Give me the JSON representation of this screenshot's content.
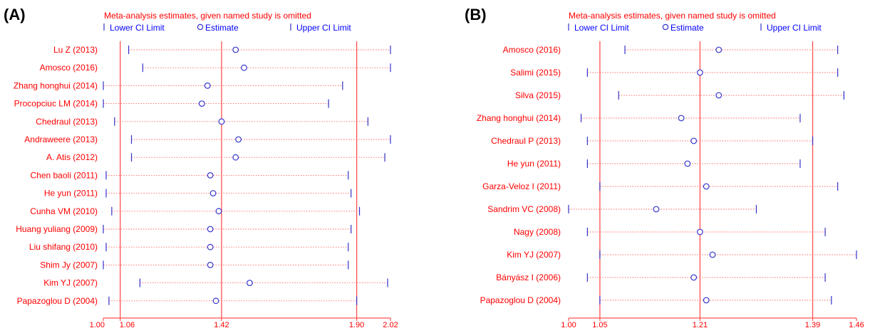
{
  "colors": {
    "text": "#ff0000",
    "refline": "#ff5050",
    "marker": "#3333cc",
    "dotted": "#ff6666",
    "panel_label": "#000000"
  },
  "chart_data": [
    {
      "type": "scatter",
      "panel_label": "(A)",
      "header": "Meta-analysis estimates, given named study is omitted",
      "legend": {
        "lower": "Lower CI Limit",
        "estimate": "Estimate",
        "upper": "Upper CI Limit"
      },
      "xlim": [
        1.0,
        2.02
      ],
      "ticks": [
        1.0,
        1.06,
        1.42,
        1.9,
        2.02
      ],
      "tick_labels": [
        "1.00",
        "1.06",
        "1.42",
        "1.90",
        "2.02"
      ],
      "reference_lines": [
        1.06,
        1.42,
        1.9
      ],
      "studies": [
        {
          "name": "Lu Z (2013)",
          "lower": 1.09,
          "estimate": 1.47,
          "upper": 2.02
        },
        {
          "name": "Amosco (2016)",
          "lower": 1.14,
          "estimate": 1.5,
          "upper": 2.02
        },
        {
          "name": "Zhang honghui (2014)",
          "lower": 1.0,
          "estimate": 1.37,
          "upper": 1.85
        },
        {
          "name": "Procopciuc LM (2014)",
          "lower": 1.0,
          "estimate": 1.35,
          "upper": 1.8
        },
        {
          "name": "Chedraul (2013)",
          "lower": 1.04,
          "estimate": 1.42,
          "upper": 1.94
        },
        {
          "name": "Andraweere (2013)",
          "lower": 1.1,
          "estimate": 1.48,
          "upper": 2.02
        },
        {
          "name": "A. Atis (2012)",
          "lower": 1.1,
          "estimate": 1.47,
          "upper": 2.0
        },
        {
          "name": "Chen baoli (2011)",
          "lower": 1.01,
          "estimate": 1.38,
          "upper": 1.87
        },
        {
          "name": "He yun (2011)",
          "lower": 1.01,
          "estimate": 1.39,
          "upper": 1.88
        },
        {
          "name": "Cunha VM (2010)",
          "lower": 1.03,
          "estimate": 1.41,
          "upper": 1.91
        },
        {
          "name": "Huang yuliang (2009)",
          "lower": 1.0,
          "estimate": 1.38,
          "upper": 1.88
        },
        {
          "name": "Liu shifang (2010)",
          "lower": 1.01,
          "estimate": 1.38,
          "upper": 1.87
        },
        {
          "name": "Shim Jy (2007)",
          "lower": 1.0,
          "estimate": 1.38,
          "upper": 1.87
        },
        {
          "name": "Kim YJ (2007)",
          "lower": 1.13,
          "estimate": 1.52,
          "upper": 2.01
        },
        {
          "name": "Papazoglou D (2004)",
          "lower": 1.02,
          "estimate": 1.4,
          "upper": 1.9
        }
      ]
    },
    {
      "type": "scatter",
      "panel_label": "(B)",
      "header": "Meta-analysis estimates, given named study is omitted",
      "legend": {
        "lower": "Lower CI Limit",
        "estimate": "Estimate",
        "upper": "Upper CI Limit"
      },
      "xlim": [
        1.0,
        1.46
      ],
      "ticks": [
        1.0,
        1.05,
        1.21,
        1.39,
        1.46
      ],
      "tick_labels": [
        "1.00",
        "1.05",
        "1.21",
        "1.39",
        "1.46"
      ],
      "reference_lines": [
        1.05,
        1.21,
        1.39
      ],
      "studies": [
        {
          "name": "Amosco (2016)",
          "lower": 1.09,
          "estimate": 1.24,
          "upper": 1.43
        },
        {
          "name": "Salimi  (2015)",
          "lower": 1.03,
          "estimate": 1.21,
          "upper": 1.43
        },
        {
          "name": "Silva  (2015)",
          "lower": 1.08,
          "estimate": 1.24,
          "upper": 1.44
        },
        {
          "name": "Zhang honghui (2014)",
          "lower": 1.02,
          "estimate": 1.18,
          "upper": 1.37
        },
        {
          "name": "Chedraul P (2013)",
          "lower": 1.03,
          "estimate": 1.2,
          "upper": 1.39
        },
        {
          "name": "He yun (2011)",
          "lower": 1.03,
          "estimate": 1.19,
          "upper": 1.37
        },
        {
          "name": "Garza-Veloz I (2011)",
          "lower": 1.05,
          "estimate": 1.22,
          "upper": 1.43
        },
        {
          "name": "Sandrim VC (2008)",
          "lower": 1.0,
          "estimate": 1.14,
          "upper": 1.3
        },
        {
          "name": "Nagy (2008)",
          "lower": 1.03,
          "estimate": 1.21,
          "upper": 1.41
        },
        {
          "name": "Kim YJ (2007)",
          "lower": 1.05,
          "estimate": 1.23,
          "upper": 1.46
        },
        {
          "name": "Bányász I (2006)",
          "lower": 1.03,
          "estimate": 1.2,
          "upper": 1.41
        },
        {
          "name": "Papazoglou D (2004)",
          "lower": 1.05,
          "estimate": 1.22,
          "upper": 1.42
        }
      ]
    }
  ]
}
